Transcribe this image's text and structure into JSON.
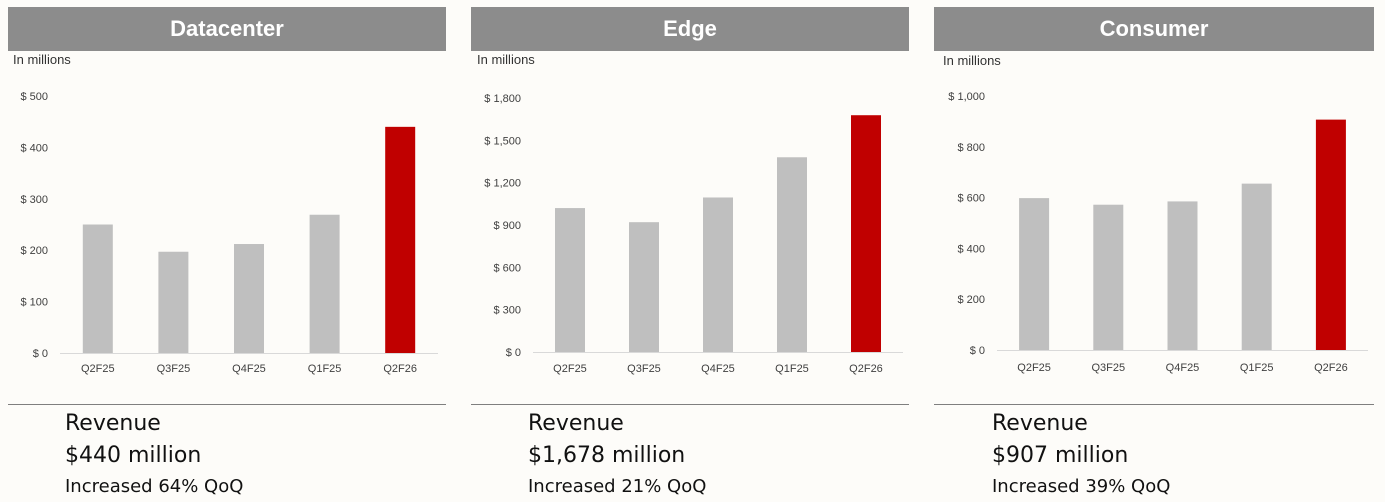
{
  "colors": {
    "header_bg": "#8c8c8c",
    "bar_default": "#bfbfbf",
    "bar_highlight": "#c00000",
    "axis": "#d9d9d9"
  },
  "panels": [
    {
      "title": "Datacenter",
      "units": "In millions",
      "summary": {
        "title": "Revenue",
        "value": "$440 million",
        "change": "Increased 64% QoQ"
      }
    },
    {
      "title": "Edge",
      "units": "In millions",
      "summary": {
        "title": "Revenue",
        "value": "$1,678 million",
        "change": "Increased 21% QoQ"
      }
    },
    {
      "title": "Consumer",
      "units": "In millions",
      "summary": {
        "title": "Revenue",
        "value": "$907 million",
        "change": "Increased 39% QoQ"
      }
    }
  ],
  "chart_data": [
    {
      "type": "bar",
      "title": "Datacenter",
      "ylabel": "In millions",
      "categories": [
        "Q2F25",
        "Q3F25",
        "Q4F25",
        "Q1F25",
        "Q2F26"
      ],
      "values": [
        250,
        197,
        212,
        269,
        440
      ],
      "highlight_index": 4,
      "ylim": [
        0,
        500
      ],
      "yticks": [
        0,
        100,
        200,
        300,
        400,
        500
      ],
      "ytick_labels": [
        "$ 0",
        "$ 100",
        "$ 200",
        "$ 300",
        "$ 400",
        "$ 500"
      ],
      "grid": false
    },
    {
      "type": "bar",
      "title": "Edge",
      "ylabel": "In millions",
      "categories": [
        "Q2F25",
        "Q3F25",
        "Q4F25",
        "Q1F25",
        "Q2F26"
      ],
      "values": [
        1020,
        920,
        1095,
        1380,
        1678
      ],
      "highlight_index": 4,
      "ylim": [
        0,
        1800
      ],
      "yticks": [
        0,
        300,
        600,
        900,
        1200,
        1500,
        1800
      ],
      "ytick_labels": [
        "$ 0",
        "$ 300",
        "$ 600",
        "$ 900",
        "$ 1,200",
        "$ 1,500",
        "$ 1,800"
      ],
      "grid": false
    },
    {
      "type": "bar",
      "title": "Consumer",
      "ylabel": "In millions",
      "categories": [
        "Q2F25",
        "Q3F25",
        "Q4F25",
        "Q1F25",
        "Q2F26"
      ],
      "values": [
        598,
        572,
        585,
        655,
        907
      ],
      "highlight_index": 4,
      "ylim": [
        0,
        1000
      ],
      "yticks": [
        0,
        200,
        400,
        600,
        800,
        1000
      ],
      "ytick_labels": [
        "$ 0",
        "$ 200",
        "$ 400",
        "$ 600",
        "$ 800",
        "$ 1,000"
      ],
      "grid": false
    }
  ]
}
